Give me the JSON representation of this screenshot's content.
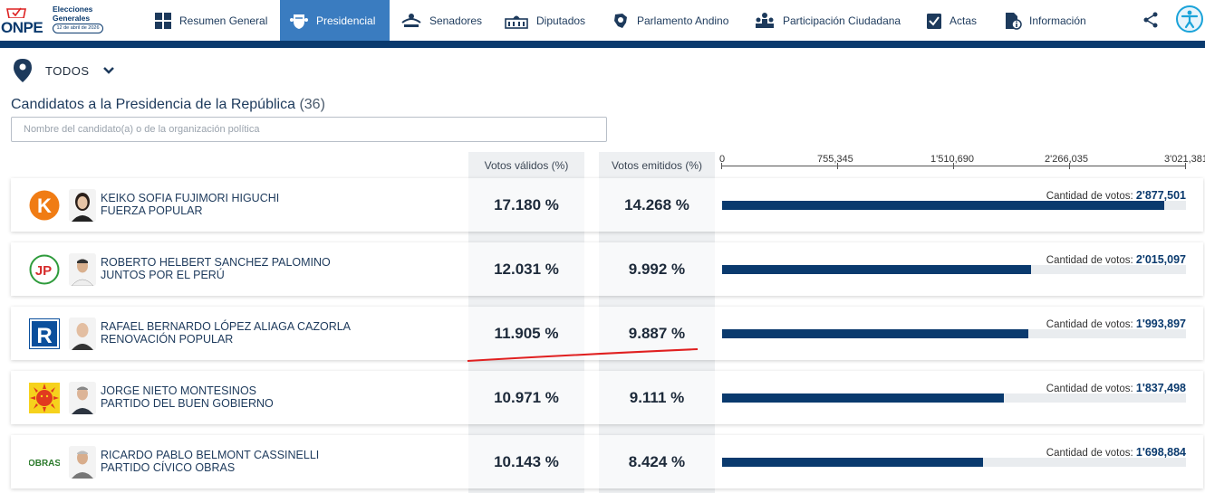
{
  "header": {
    "logo_text": "ONPE",
    "logo_title_1": "Elecciones",
    "logo_title_2": "Generales",
    "logo_date": "12 de abril de 2026",
    "nav": [
      {
        "label": "Resumen General",
        "icon": "dashboard-grid-icon",
        "active": false
      },
      {
        "label": "Presidencial",
        "icon": "coat-of-arms-icon",
        "active": true
      },
      {
        "label": "Senadores",
        "icon": "senate-icon",
        "active": false
      },
      {
        "label": "Diputados",
        "icon": "congress-building-icon",
        "active": false
      },
      {
        "label": "Parlamento Andino",
        "icon": "andean-map-icon",
        "active": false
      },
      {
        "label": "Participación Ciudadana",
        "icon": "people-group-icon",
        "active": false
      },
      {
        "label": "Actas",
        "icon": "clipboard-check-icon",
        "active": false
      },
      {
        "label": "Información",
        "icon": "info-document-icon",
        "active": false
      }
    ],
    "share_icon": "share-icon",
    "accessibility_icon": "accessibility-icon",
    "accent_color": "#0a3a6e",
    "active_color": "#3a7cc0"
  },
  "filter": {
    "region_label": "TODOS",
    "region_icon": "location-pin-icon"
  },
  "section": {
    "title": "Candidatos a la Presidencia de la República",
    "count": "(36)",
    "search_placeholder": "Nombre del candidato(a) o de la organización política"
  },
  "table": {
    "col_valid": "Votos válidos (%)",
    "col_emitted": "Votos emitidos (%)",
    "votes_label": "Cantidad de votos:",
    "axis_ticks": [
      "0",
      "755,345",
      "1'510,690",
      "2'266,035",
      "3'021,381"
    ],
    "axis_max": 3021381
  },
  "candidates": [
    {
      "name": "KEIKO SOFIA FUJIMORI HIGUCHI",
      "party": "FUERZA POPULAR",
      "valid_pct": "17.180 %",
      "emitted_pct": "14.268 %",
      "votes_text": "2'877,501",
      "votes": 2877501,
      "party_logo": "fuerza-popular-k-logo",
      "photo": "candidate-photo"
    },
    {
      "name": "ROBERTO HELBERT SANCHEZ PALOMINO",
      "party": "JUNTOS POR EL PERÚ",
      "valid_pct": "12.031 %",
      "emitted_pct": "9.992 %",
      "votes_text": "2'015,097",
      "votes": 2015097,
      "party_logo": "juntos-por-el-peru-logo",
      "photo": "candidate-photo"
    },
    {
      "name": "RAFAEL BERNARDO LÓPEZ ALIAGA CAZORLA",
      "party": "RENOVACIÓN POPULAR",
      "valid_pct": "11.905 %",
      "emitted_pct": "9.887 %",
      "votes_text": "1'993,897",
      "votes": 1993897,
      "party_logo": "renovacion-popular-r-logo",
      "photo": "candidate-photo"
    },
    {
      "name": "JORGE NIETO MONTESINOS",
      "party": "PARTIDO DEL BUEN GOBIERNO",
      "valid_pct": "10.971 %",
      "emitted_pct": "9.111 %",
      "votes_text": "1'837,498",
      "votes": 1837498,
      "party_logo": "buen-gobierno-sun-logo",
      "photo": "candidate-photo"
    },
    {
      "name": "RICARDO PABLO BELMONT CASSINELLI",
      "party": "PARTIDO CÍVICO OBRAS",
      "valid_pct": "10.143 %",
      "emitted_pct": "8.424 %",
      "votes_text": "1'698,884",
      "votes": 1698884,
      "party_logo": "obras-logo",
      "photo": "candidate-photo"
    }
  ],
  "party_logo_text": {
    "obras": "OBRAS",
    "jp": "JP",
    "k": "K",
    "r": "R"
  }
}
